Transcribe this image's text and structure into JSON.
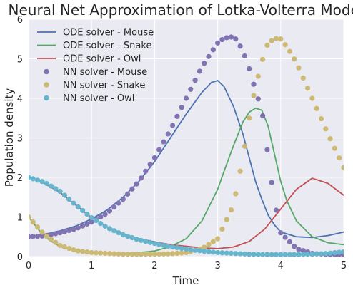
{
  "chart_data": {
    "type": "line",
    "title": "Neural Net Approximation of Lotka-Volterra Model",
    "xlabel": "Time",
    "ylabel": "Population density",
    "xlim": [
      0,
      5
    ],
    "ylim": [
      0,
      6
    ],
    "xticks": [
      "0",
      "1",
      "2",
      "3",
      "4",
      "5"
    ],
    "yticks": [
      "0",
      "1",
      "2",
      "3",
      "4",
      "5",
      "6"
    ],
    "grid": true,
    "legend_position": "top-left",
    "background": "#eaeaf2",
    "series": [
      {
        "name": "ODE solver - Mouse",
        "kind": "line",
        "color": "#4c72b0",
        "x": [
          0,
          0.25,
          0.5,
          0.75,
          1.0,
          1.25,
          1.5,
          1.75,
          2.0,
          2.25,
          2.5,
          2.75,
          2.9,
          3.0,
          3.1,
          3.25,
          3.4,
          3.5,
          3.6,
          3.7,
          3.8,
          3.9,
          4.0,
          4.25,
          4.5,
          4.75,
          5.0
        ],
        "y": [
          0.5,
          0.56,
          0.65,
          0.77,
          0.95,
          1.18,
          1.5,
          1.9,
          2.4,
          3.0,
          3.6,
          4.15,
          4.4,
          4.45,
          4.3,
          3.8,
          3.1,
          2.5,
          1.9,
          1.45,
          1.05,
          0.8,
          0.62,
          0.5,
          0.48,
          0.53,
          0.62
        ]
      },
      {
        "name": "ODE solver - Snake",
        "kind": "line",
        "color": "#55a868",
        "x": [
          0,
          0.25,
          0.5,
          0.75,
          1.0,
          1.25,
          1.5,
          1.75,
          2.0,
          2.25,
          2.5,
          2.75,
          3.0,
          3.1,
          3.25,
          3.4,
          3.5,
          3.6,
          3.7,
          3.8,
          3.9,
          4.0,
          4.1,
          4.25,
          4.5,
          4.75,
          5.0
        ],
        "y": [
          1.0,
          0.5,
          0.25,
          0.15,
          0.1,
          0.08,
          0.08,
          0.1,
          0.14,
          0.25,
          0.45,
          0.9,
          1.7,
          2.15,
          2.8,
          3.4,
          3.65,
          3.75,
          3.7,
          3.3,
          2.6,
          1.9,
          1.4,
          0.9,
          0.5,
          0.35,
          0.3
        ]
      },
      {
        "name": "ODE solver - Owl",
        "kind": "line",
        "color": "#c44e52",
        "x": [
          0,
          0.25,
          0.5,
          0.75,
          1.0,
          1.25,
          1.5,
          1.75,
          2.0,
          2.25,
          2.5,
          2.75,
          3.0,
          3.25,
          3.5,
          3.75,
          4.0,
          4.25,
          4.5,
          4.75,
          5.0
        ],
        "y": [
          2.0,
          1.85,
          1.62,
          1.3,
          0.98,
          0.75,
          0.57,
          0.45,
          0.37,
          0.3,
          0.26,
          0.22,
          0.2,
          0.24,
          0.38,
          0.7,
          1.2,
          1.7,
          1.98,
          1.85,
          1.55
        ]
      },
      {
        "name": "NN solver - Mouse",
        "kind": "scatter",
        "color": "#8172b2",
        "x": [
          0,
          0.25,
          0.5,
          0.75,
          1.0,
          1.25,
          1.5,
          1.75,
          2.0,
          2.25,
          2.5,
          2.75,
          3.0,
          3.1,
          3.2,
          3.25,
          3.3,
          3.4,
          3.5,
          3.6,
          3.7,
          3.75,
          3.8,
          3.9,
          4.0,
          4.25,
          4.5,
          4.75,
          5.0
        ],
        "y": [
          0.5,
          0.52,
          0.6,
          0.7,
          0.87,
          1.1,
          1.45,
          1.9,
          2.5,
          3.2,
          4.0,
          4.8,
          5.4,
          5.52,
          5.55,
          5.55,
          5.48,
          5.2,
          4.75,
          4.2,
          3.7,
          3.2,
          2.5,
          1.4,
          0.6,
          0.2,
          0.08,
          0.05,
          0.05
        ]
      },
      {
        "name": "NN solver - Snake",
        "kind": "scatter",
        "color": "#ccb974",
        "x": [
          0,
          0.25,
          0.5,
          0.75,
          1.0,
          1.25,
          1.5,
          1.75,
          2.0,
          2.25,
          2.5,
          2.75,
          3.0,
          3.25,
          3.4,
          3.5,
          3.6,
          3.7,
          3.75,
          3.8,
          3.9,
          3.95,
          4.0,
          4.1,
          4.25,
          4.5,
          4.75,
          5.0
        ],
        "y": [
          1.0,
          0.55,
          0.28,
          0.15,
          0.1,
          0.08,
          0.06,
          0.06,
          0.06,
          0.07,
          0.1,
          0.2,
          0.45,
          1.3,
          2.5,
          3.5,
          4.3,
          4.9,
          5.2,
          5.4,
          5.5,
          5.52,
          5.5,
          5.3,
          4.9,
          4.0,
          3.1,
          2.25
        ]
      },
      {
        "name": "NN solver - Owl",
        "kind": "scatter",
        "color": "#64b5cd",
        "x": [
          0,
          0.25,
          0.5,
          0.75,
          1.0,
          1.25,
          1.5,
          1.75,
          2.0,
          2.25,
          2.5,
          2.75,
          3.0,
          3.25,
          3.5,
          3.75,
          4.0,
          4.25,
          4.5,
          4.75,
          5.0
        ],
        "y": [
          2.0,
          1.88,
          1.65,
          1.3,
          0.98,
          0.73,
          0.55,
          0.42,
          0.33,
          0.25,
          0.19,
          0.14,
          0.1,
          0.08,
          0.06,
          0.05,
          0.05,
          0.05,
          0.06,
          0.08,
          0.12
        ]
      }
    ]
  }
}
